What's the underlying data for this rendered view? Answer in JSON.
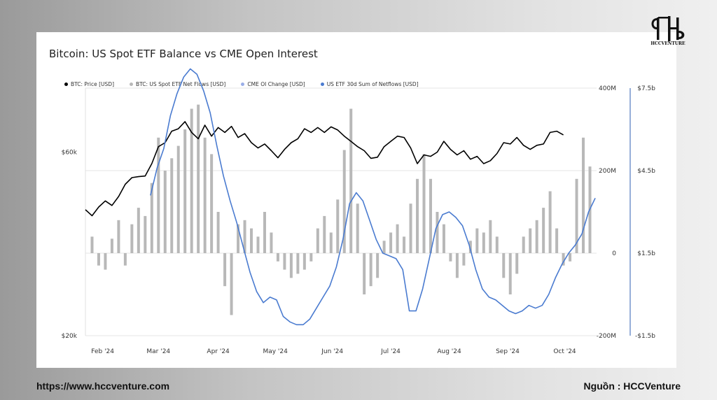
{
  "footer": {
    "url": "https://www.hccventure.com",
    "source": "Nguồn : HCCVenture"
  },
  "brand": {
    "logo_text": "HCCVENTURE"
  },
  "colors": {
    "price": "#000000",
    "netflows": "#b8b8b8",
    "cme": "#9aaee8",
    "sum30d": "#4a7bd0",
    "grid": "#e6e6e6",
    "axis_line": "#2f5fb3"
  },
  "chart_data": {
    "type": "line",
    "title": "Bitcoin: US Spot ETF Balance vs CME Open Interest",
    "legend": [
      {
        "key": "price",
        "label": "BTC: Price [USD]",
        "icon": "black-dot"
      },
      {
        "key": "netflows",
        "label": "BTC: US Spot ETF Net Flows [USD]",
        "icon": "grey-dot"
      },
      {
        "key": "cme",
        "label": "CME OI Change [USD]",
        "icon": "light-blue-dot"
      },
      {
        "key": "sum30d",
        "label": "US ETF 30d Sum of Netflows [USD]",
        "icon": "blue-dot"
      }
    ],
    "legend_position": "top-left",
    "x_ticks": [
      "Feb '24",
      "Mar '24",
      "Apr '24",
      "May '24",
      "Jun '24",
      "Jul '24",
      "Aug '24",
      "Sep '24",
      "Oct '24"
    ],
    "x_range_weeks": [
      0,
      38.5
    ],
    "left_axis": {
      "ticks": [
        "$60k",
        "$20k"
      ],
      "values": [
        60000,
        20000
      ],
      "scale": "log",
      "range": [
        20000,
        88000
      ]
    },
    "right_axis_1": {
      "ticks": [
        "400M",
        "200M",
        "0",
        "-200M"
      ],
      "values": [
        400,
        200,
        0,
        -200
      ],
      "range": [
        -200,
        400
      ],
      "unit": "M"
    },
    "right_axis_2": {
      "ticks": [
        "$7.5b",
        "$4.5b",
        "$1.5b",
        "-$1.5b"
      ],
      "values": [
        7.5,
        4.5,
        1.5,
        -1.5
      ],
      "range": [
        -1.5,
        7.5
      ],
      "unit": "b"
    },
    "grid": true,
    "series": [
      {
        "key": "price",
        "name": "BTC: Price [USD]",
        "axis": "left",
        "points": [
          [
            0,
            42500
          ],
          [
            0.5,
            41000
          ],
          [
            1,
            43200
          ],
          [
            1.5,
            44800
          ],
          [
            2,
            43600
          ],
          [
            2.5,
            46000
          ],
          [
            3,
            49500
          ],
          [
            3.5,
            51500
          ],
          [
            4,
            51800
          ],
          [
            4.5,
            52000
          ],
          [
            5,
            56000
          ],
          [
            5.5,
            62000
          ],
          [
            6,
            63500
          ],
          [
            6.5,
            68000
          ],
          [
            7,
            69000
          ],
          [
            7.5,
            72000
          ],
          [
            8,
            67500
          ],
          [
            8.5,
            65000
          ],
          [
            9,
            70500
          ],
          [
            9.5,
            66000
          ],
          [
            10,
            69500
          ],
          [
            10.5,
            67500
          ],
          [
            11,
            70000
          ],
          [
            11.5,
            65500
          ],
          [
            12,
            67000
          ],
          [
            12.5,
            63500
          ],
          [
            13,
            61500
          ],
          [
            13.5,
            63000
          ],
          [
            14,
            60500
          ],
          [
            14.5,
            58000
          ],
          [
            15,
            61000
          ],
          [
            15.5,
            63500
          ],
          [
            16,
            65000
          ],
          [
            16.5,
            69000
          ],
          [
            17,
            67500
          ],
          [
            17.5,
            69500
          ],
          [
            18,
            67500
          ],
          [
            18.5,
            69800
          ],
          [
            19,
            68500
          ],
          [
            19.5,
            66000
          ],
          [
            20,
            64000
          ],
          [
            20.5,
            62000
          ],
          [
            21,
            60500
          ],
          [
            21.5,
            57800
          ],
          [
            22,
            58200
          ],
          [
            22.5,
            62000
          ],
          [
            23,
            64000
          ],
          [
            23.5,
            66000
          ],
          [
            24,
            65500
          ],
          [
            24.5,
            61500
          ],
          [
            25,
            56000
          ],
          [
            25.5,
            59000
          ],
          [
            26,
            58500
          ],
          [
            26.5,
            60000
          ],
          [
            27,
            64000
          ],
          [
            27.5,
            61000
          ],
          [
            28,
            59000
          ],
          [
            28.5,
            60500
          ],
          [
            29,
            57500
          ],
          [
            29.5,
            58500
          ],
          [
            30,
            56000
          ],
          [
            30.5,
            57000
          ],
          [
            31,
            59500
          ],
          [
            31.5,
            63500
          ],
          [
            32,
            63000
          ],
          [
            32.5,
            65500
          ],
          [
            33,
            62500
          ],
          [
            33.5,
            61000
          ],
          [
            34,
            62500
          ],
          [
            34.5,
            63000
          ],
          [
            35,
            67500
          ],
          [
            35.5,
            68000
          ],
          [
            36,
            66500
          ]
        ]
      },
      {
        "key": "netflows",
        "name": "BTC: US Spot ETF Net Flows [USD]",
        "axis": "right_1",
        "bars": [
          [
            0.5,
            40
          ],
          [
            1,
            -30
          ],
          [
            1.5,
            -40
          ],
          [
            2,
            35
          ],
          [
            2.5,
            80
          ],
          [
            3,
            -30
          ],
          [
            3.5,
            70
          ],
          [
            4,
            110
          ],
          [
            4.5,
            90
          ],
          [
            5,
            170
          ],
          [
            5.5,
            280
          ],
          [
            6,
            200
          ],
          [
            6.5,
            230
          ],
          [
            7,
            260
          ],
          [
            7.5,
            300
          ],
          [
            8,
            350
          ],
          [
            8.5,
            360
          ],
          [
            9,
            280
          ],
          [
            9.5,
            240
          ],
          [
            10,
            100
          ],
          [
            10.5,
            -80
          ],
          [
            11,
            -150
          ],
          [
            11.5,
            70
          ],
          [
            12,
            80
          ],
          [
            12.5,
            60
          ],
          [
            13,
            40
          ],
          [
            13.5,
            100
          ],
          [
            14,
            50
          ],
          [
            14.5,
            -20
          ],
          [
            15,
            -40
          ],
          [
            15.5,
            -60
          ],
          [
            16,
            -50
          ],
          [
            16.5,
            -40
          ],
          [
            17,
            -20
          ],
          [
            17.5,
            60
          ],
          [
            18,
            90
          ],
          [
            18.5,
            50
          ],
          [
            19,
            130
          ],
          [
            19.5,
            250
          ],
          [
            20,
            350
          ],
          [
            20.5,
            120
          ],
          [
            21,
            -100
          ],
          [
            21.5,
            -80
          ],
          [
            22,
            -60
          ],
          [
            22.5,
            30
          ],
          [
            23,
            50
          ],
          [
            23.5,
            70
          ],
          [
            24,
            40
          ],
          [
            24.5,
            120
          ],
          [
            25,
            180
          ],
          [
            25.5,
            240
          ],
          [
            26,
            180
          ],
          [
            26.5,
            100
          ],
          [
            27,
            70
          ],
          [
            27.5,
            -20
          ],
          [
            28,
            -60
          ],
          [
            28.5,
            -30
          ],
          [
            29,
            30
          ],
          [
            29.5,
            60
          ],
          [
            30,
            50
          ],
          [
            30.5,
            80
          ],
          [
            31,
            40
          ],
          [
            31.5,
            -60
          ],
          [
            32,
            -100
          ],
          [
            32.5,
            -50
          ],
          [
            33,
            40
          ],
          [
            33.5,
            60
          ],
          [
            34,
            80
          ],
          [
            34.5,
            110
          ],
          [
            35,
            150
          ],
          [
            35.5,
            60
          ],
          [
            36,
            -30
          ],
          [
            36.5,
            -20
          ],
          [
            37,
            180
          ],
          [
            37.5,
            280
          ],
          [
            38,
            210
          ]
        ]
      },
      {
        "key": "sum30d",
        "name": "US ETF 30d Sum of Netflows [USD]",
        "axis": "right_2",
        "points": [
          [
            4.9,
            3.6
          ],
          [
            5.4,
            4.6
          ],
          [
            5.9,
            5.3
          ],
          [
            6.4,
            6.5
          ],
          [
            6.9,
            7.3
          ],
          [
            7.4,
            7.9
          ],
          [
            7.9,
            8.2
          ],
          [
            8.4,
            8.0
          ],
          [
            8.9,
            7.4
          ],
          [
            9.4,
            6.6
          ],
          [
            9.9,
            5.4
          ],
          [
            10.4,
            4.3
          ],
          [
            10.9,
            3.4
          ],
          [
            11.4,
            2.6
          ],
          [
            11.9,
            1.7
          ],
          [
            12.4,
            0.8
          ],
          [
            12.9,
            0.1
          ],
          [
            13.4,
            -0.3
          ],
          [
            13.9,
            -0.1
          ],
          [
            14.4,
            -0.2
          ],
          [
            14.9,
            -0.8
          ],
          [
            15.4,
            -1.0
          ],
          [
            15.9,
            -1.1
          ],
          [
            16.4,
            -1.1
          ],
          [
            16.9,
            -0.9
          ],
          [
            17.4,
            -0.5
          ],
          [
            17.9,
            -0.1
          ],
          [
            18.4,
            0.3
          ],
          [
            18.9,
            1.0
          ],
          [
            19.4,
            2.0
          ],
          [
            19.9,
            3.3
          ],
          [
            20.4,
            3.7
          ],
          [
            20.9,
            3.4
          ],
          [
            21.4,
            2.7
          ],
          [
            21.9,
            2.0
          ],
          [
            22.4,
            1.5
          ],
          [
            22.9,
            1.4
          ],
          [
            23.4,
            1.3
          ],
          [
            23.9,
            0.9
          ],
          [
            24.4,
            -0.6
          ],
          [
            24.9,
            -0.6
          ],
          [
            25.4,
            0.2
          ],
          [
            25.9,
            1.3
          ],
          [
            26.4,
            2.4
          ],
          [
            26.9,
            2.9
          ],
          [
            27.4,
            3.0
          ],
          [
            27.9,
            2.8
          ],
          [
            28.4,
            2.5
          ],
          [
            28.9,
            1.8
          ],
          [
            29.4,
            0.9
          ],
          [
            29.9,
            0.2
          ],
          [
            30.4,
            -0.1
          ],
          [
            30.9,
            -0.2
          ],
          [
            31.4,
            -0.4
          ],
          [
            31.9,
            -0.6
          ],
          [
            32.4,
            -0.7
          ],
          [
            32.9,
            -0.6
          ],
          [
            33.4,
            -0.4
          ],
          [
            33.9,
            -0.5
          ],
          [
            34.4,
            -0.4
          ],
          [
            34.9,
            0.0
          ],
          [
            35.4,
            0.6
          ],
          [
            35.9,
            1.1
          ],
          [
            36.4,
            1.5
          ],
          [
            36.9,
            1.8
          ],
          [
            37.4,
            2.2
          ],
          [
            37.9,
            3.0
          ],
          [
            38.4,
            3.5
          ]
        ]
      }
    ]
  }
}
